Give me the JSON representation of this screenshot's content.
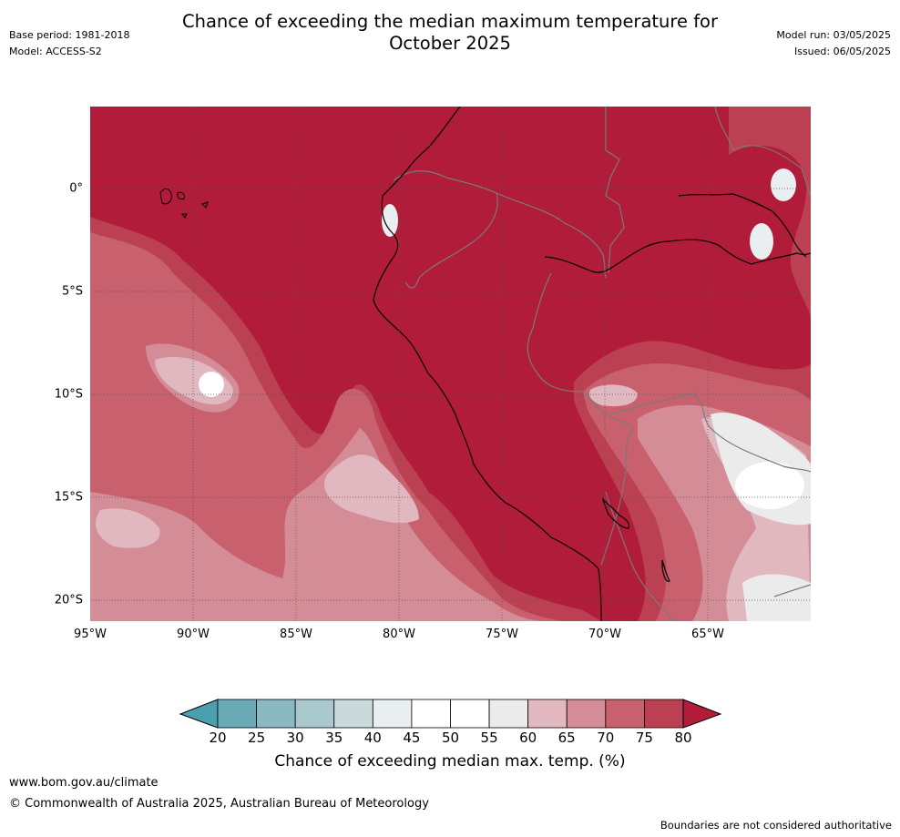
{
  "header": {
    "title_line1": "Chance of exceeding the median maximum temperature for",
    "title_line2": "October 2025",
    "base_period": "Base period: 1981-2018",
    "model": "Model: ACCESS-S2",
    "model_run": "Model run: 03/05/2025",
    "issued": "Issued: 06/05/2025"
  },
  "map": {
    "lat_labels": [
      "0°",
      "5°S",
      "10°S",
      "15°S",
      "20°S"
    ],
    "lon_labels": [
      "95°W",
      "90°W",
      "85°W",
      "80°W",
      "75°W",
      "70°W",
      "65°W"
    ],
    "background_color": "#b01c3a"
  },
  "colorbar": {
    "ticks": [
      "20",
      "25",
      "30",
      "35",
      "40",
      "45",
      "50",
      "55",
      "60",
      "65",
      "70",
      "75",
      "80"
    ],
    "colors": [
      "#6aabb7",
      "#8ab9c4",
      "#aac9cf",
      "#c9d9dc",
      "#e9eef0",
      "#ffffff",
      "#ffffff",
      "#ebebeb",
      "#e1b8bf",
      "#d48d97",
      "#c8606e",
      "#bb4152"
    ],
    "low_color": "#4aa0ae",
    "high_color": "#b01c3a",
    "label": "Chance of exceeding median max. temp. (%)"
  },
  "footer": {
    "website": "www.bom.gov.au/climate",
    "copyright": "© Commonwealth of Australia 2025, Australian Bureau of Meteorology",
    "disclaimer": "Boundaries are not considered authoritative"
  }
}
